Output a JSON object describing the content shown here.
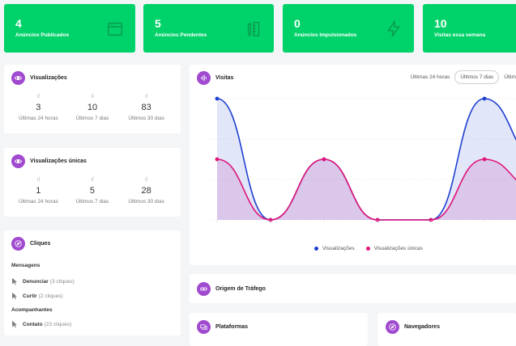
{
  "stats": [
    {
      "value": "4",
      "label": "Anúncios Publicados",
      "icon": "browser-window-icon"
    },
    {
      "value": "5",
      "label": "Anúncios Pendentes",
      "icon": "ruler-pencil-icon"
    },
    {
      "value": "0",
      "label": "Anúncios Impulsionados",
      "icon": "lightning-icon"
    },
    {
      "value": "10",
      "label": "Visitas essa semana",
      "icon": "calendar-icon"
    }
  ],
  "views": {
    "title": "Visualizações",
    "metrics": [
      {
        "value": "3",
        "label": "Últimas 24 horas"
      },
      {
        "value": "10",
        "label": "Últimos 7 dias"
      },
      {
        "value": "83",
        "label": "Últimos 30 dias"
      }
    ]
  },
  "unique_views": {
    "title": "Visualizações únicas",
    "metrics": [
      {
        "value": "1",
        "label": "Últimas 24 horas"
      },
      {
        "value": "5",
        "label": "Últimos 7 dias"
      },
      {
        "value": "28",
        "label": "Últimos 30 dias"
      }
    ]
  },
  "clicks": {
    "title": "Cliques",
    "groups": [
      {
        "title": "Mensagens",
        "items": [
          {
            "name": "Denunciar",
            "count": "(3 cliques)"
          },
          {
            "name": "Curtir",
            "count": "(2 cliques)"
          }
        ]
      },
      {
        "title": "Acompanhantes",
        "items": [
          {
            "name": "Contato",
            "count": "(23 cliques)"
          }
        ]
      }
    ]
  },
  "visits": {
    "title": "Visitas",
    "tabs": [
      "Últimas 24 horas",
      "Últimos 7 dias",
      "Últim"
    ],
    "active_tab": 1
  },
  "chart_data": {
    "type": "area",
    "x": [
      "",
      "",
      "",
      "",
      "",
      "",
      ""
    ],
    "series": [
      {
        "name": "Visualizações",
        "values": [
          3,
          0,
          1.5,
          0,
          0,
          3,
          1.5
        ],
        "color": "#1f3fd1"
      },
      {
        "name": "Visualizações únicas",
        "values": [
          1.5,
          0,
          1.5,
          0,
          0,
          1.5,
          0.75
        ],
        "color": "#e0157a"
      }
    ],
    "ylim": [
      0,
      3
    ],
    "grid": true,
    "legend": "bottom"
  },
  "traffic": {
    "title": "Origem de Tráfego"
  },
  "platforms": {
    "title": "Plataformas"
  },
  "browsers": {
    "title": "Navegadores"
  },
  "colors": {
    "accent": "#00d26a",
    "badge": "#a04ad0"
  }
}
